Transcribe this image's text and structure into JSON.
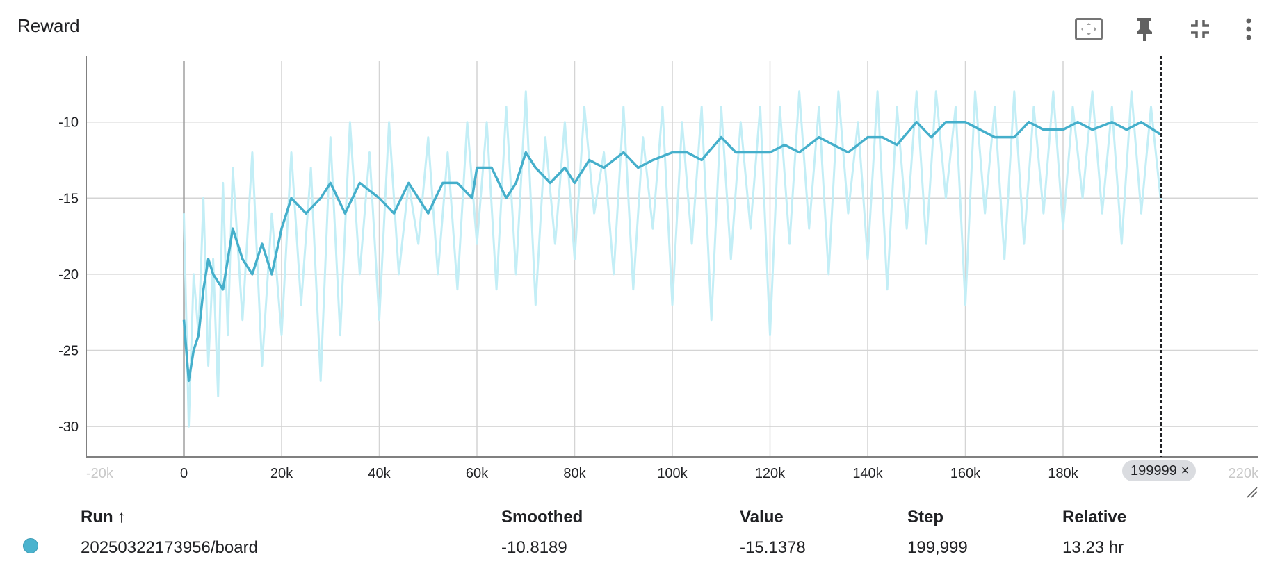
{
  "card": {
    "title": "Reward"
  },
  "toolbar": {
    "icons": [
      "fit-to-data-icon",
      "pin-icon",
      "collapse-icon",
      "more-vert-icon"
    ]
  },
  "colors": {
    "smoothed_line": "#45afcb",
    "raw_line": "#c3eef6",
    "grid": "#d4d4d4",
    "axis": "#808080",
    "cursor_line": "#202124",
    "run_dot": "#4bb3ce"
  },
  "chart_data": {
    "type": "line",
    "title": "Reward",
    "xlabel": "",
    "ylabel": "",
    "xlim": [
      -20000,
      220000
    ],
    "ylim": [
      -32,
      -6
    ],
    "grid": true,
    "x_ticks": [
      "-20k",
      "0",
      "20k",
      "40k",
      "60k",
      "80k",
      "100k",
      "120k",
      "140k",
      "160k",
      "180k",
      "220k"
    ],
    "x_tick_values": [
      -20000,
      0,
      20000,
      40000,
      60000,
      80000,
      100000,
      120000,
      140000,
      160000,
      180000,
      220000
    ],
    "x_tick_faded": [
      true,
      false,
      false,
      false,
      false,
      false,
      false,
      false,
      false,
      false,
      false,
      true
    ],
    "y_ticks": [
      "-10",
      "-15",
      "-20",
      "-25",
      "-30"
    ],
    "y_tick_values": [
      -10,
      -15,
      -20,
      -25,
      -30
    ],
    "series": [
      {
        "name": "20250322173956/board",
        "style": "smoothed",
        "x": [
          0,
          1000,
          2000,
          3000,
          4000,
          5000,
          6000,
          8000,
          10000,
          12000,
          14000,
          16000,
          18000,
          20000,
          22000,
          25000,
          28000,
          30000,
          33000,
          36000,
          40000,
          43000,
          46000,
          50000,
          53000,
          56000,
          59000,
          60000,
          63000,
          66000,
          68000,
          70000,
          72000,
          75000,
          78000,
          80000,
          83000,
          86000,
          90000,
          93000,
          96000,
          100000,
          103000,
          106000,
          110000,
          113000,
          116000,
          120000,
          123000,
          126000,
          130000,
          133000,
          136000,
          140000,
          143000,
          146000,
          150000,
          153000,
          156000,
          160000,
          163000,
          166000,
          170000,
          173000,
          176000,
          180000,
          183000,
          186000,
          190000,
          193000,
          196000,
          199999
        ],
        "values": [
          -23,
          -27,
          -25,
          -24,
          -21,
          -19,
          -20,
          -21,
          -17,
          -19,
          -20,
          -18,
          -20,
          -17,
          -15,
          -16,
          -15,
          -14,
          -16,
          -14,
          -15,
          -16,
          -14,
          -16,
          -14,
          -14,
          -15,
          -13,
          -13,
          -15,
          -14,
          -12,
          -13,
          -14,
          -13,
          -14,
          -12.5,
          -13,
          -12,
          -13,
          -12.5,
          -12,
          -12,
          -12.5,
          -11,
          -12,
          -12,
          -12,
          -11.5,
          -12,
          -11,
          -11.5,
          -12,
          -11,
          -11,
          -11.5,
          -10,
          -11,
          -10,
          -10,
          -10.5,
          -11,
          -11,
          -10,
          -10.5,
          -10.5,
          -10,
          -10.5,
          -10,
          -10.5,
          -10,
          -10.8189
        ]
      },
      {
        "name": "20250322173956/board",
        "style": "raw",
        "x": [
          0,
          1000,
          2000,
          3000,
          4000,
          5000,
          6000,
          7000,
          8000,
          9000,
          10000,
          12000,
          14000,
          16000,
          18000,
          20000,
          22000,
          24000,
          26000,
          28000,
          30000,
          32000,
          34000,
          36000,
          38000,
          40000,
          42000,
          44000,
          46000,
          48000,
          50000,
          52000,
          54000,
          56000,
          58000,
          60000,
          62000,
          64000,
          66000,
          68000,
          70000,
          72000,
          74000,
          76000,
          78000,
          80000,
          82000,
          84000,
          86000,
          88000,
          90000,
          92000,
          94000,
          96000,
          98000,
          100000,
          102000,
          104000,
          106000,
          108000,
          110000,
          112000,
          114000,
          116000,
          118000,
          120000,
          122000,
          124000,
          126000,
          128000,
          130000,
          132000,
          134000,
          136000,
          138000,
          140000,
          142000,
          144000,
          146000,
          148000,
          150000,
          152000,
          154000,
          156000,
          158000,
          160000,
          162000,
          164000,
          166000,
          168000,
          170000,
          172000,
          174000,
          176000,
          178000,
          180000,
          182000,
          184000,
          186000,
          188000,
          190000,
          192000,
          194000,
          196000,
          198000,
          199999
        ],
        "values": [
          -16,
          -30,
          -20,
          -24,
          -15,
          -26,
          -19,
          -28,
          -14,
          -24,
          -13,
          -23,
          -12,
          -26,
          -16,
          -24,
          -12,
          -22,
          -13,
          -27,
          -11,
          -24,
          -10,
          -20,
          -12,
          -23,
          -10,
          -20,
          -14,
          -18,
          -11,
          -20,
          -12,
          -21,
          -10,
          -18,
          -10,
          -21,
          -9,
          -20,
          -8,
          -22,
          -11,
          -18,
          -10,
          -19,
          -9,
          -16,
          -12,
          -20,
          -9,
          -21,
          -11,
          -17,
          -9,
          -22,
          -10,
          -18,
          -9,
          -23,
          -9,
          -19,
          -10,
          -17,
          -9,
          -24,
          -9,
          -18,
          -8,
          -17,
          -9,
          -20,
          -8,
          -16,
          -10,
          -19,
          -8,
          -21,
          -9,
          -17,
          -8,
          -18,
          -8,
          -15,
          -9,
          -22,
          -8,
          -16,
          -9,
          -19,
          -8,
          -18,
          -9,
          -16,
          -8,
          -17,
          -9,
          -15,
          -8,
          -16,
          -9,
          -18,
          -8,
          -16,
          -9,
          -15.1378
        ]
      }
    ],
    "cursor": {
      "step": 199999,
      "label": "199999"
    }
  },
  "table": {
    "headers": {
      "run": "Run",
      "sort_arrow": "↑",
      "smoothed": "Smoothed",
      "value": "Value",
      "step": "Step",
      "relative": "Relative"
    },
    "rows": [
      {
        "run": "20250322173956/board",
        "smoothed": "-10.8189",
        "value": "-15.1378",
        "step": "199,999",
        "relative": "13.23 hr"
      }
    ]
  }
}
